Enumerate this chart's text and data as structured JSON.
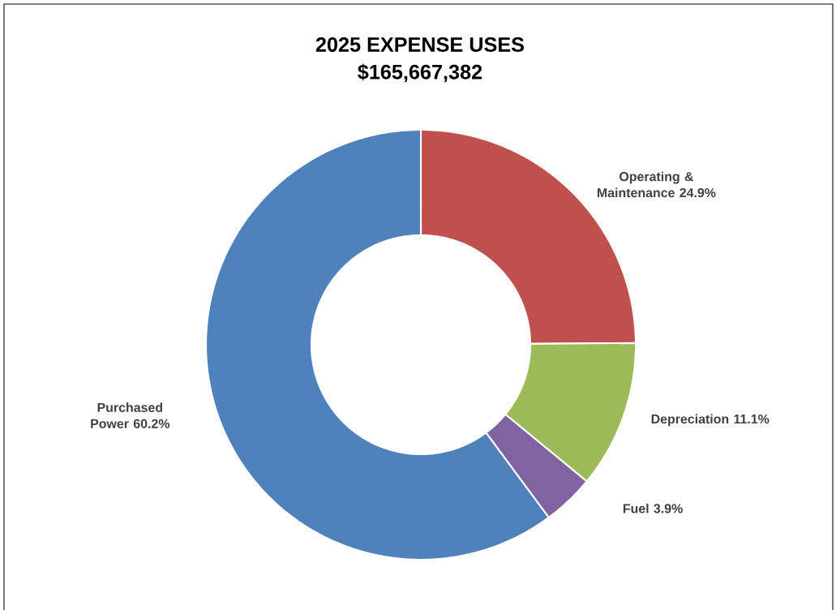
{
  "chart_data": {
    "type": "donut",
    "title": "2025 EXPENSE USES",
    "subtitle": "$165,667,382",
    "categories": [
      "Operating & Maintenance",
      "Depreciation",
      "Fuel",
      "Purchased Power"
    ],
    "values": [
      24.9,
      11.1,
      3.9,
      60.2
    ],
    "colors": [
      "#c0504d",
      "#9bbb59",
      "#8064a2",
      "#4f81bd"
    ],
    "value_labels": [
      "24.9%",
      "11.1%",
      "3.9%",
      "60.2%"
    ]
  }
}
